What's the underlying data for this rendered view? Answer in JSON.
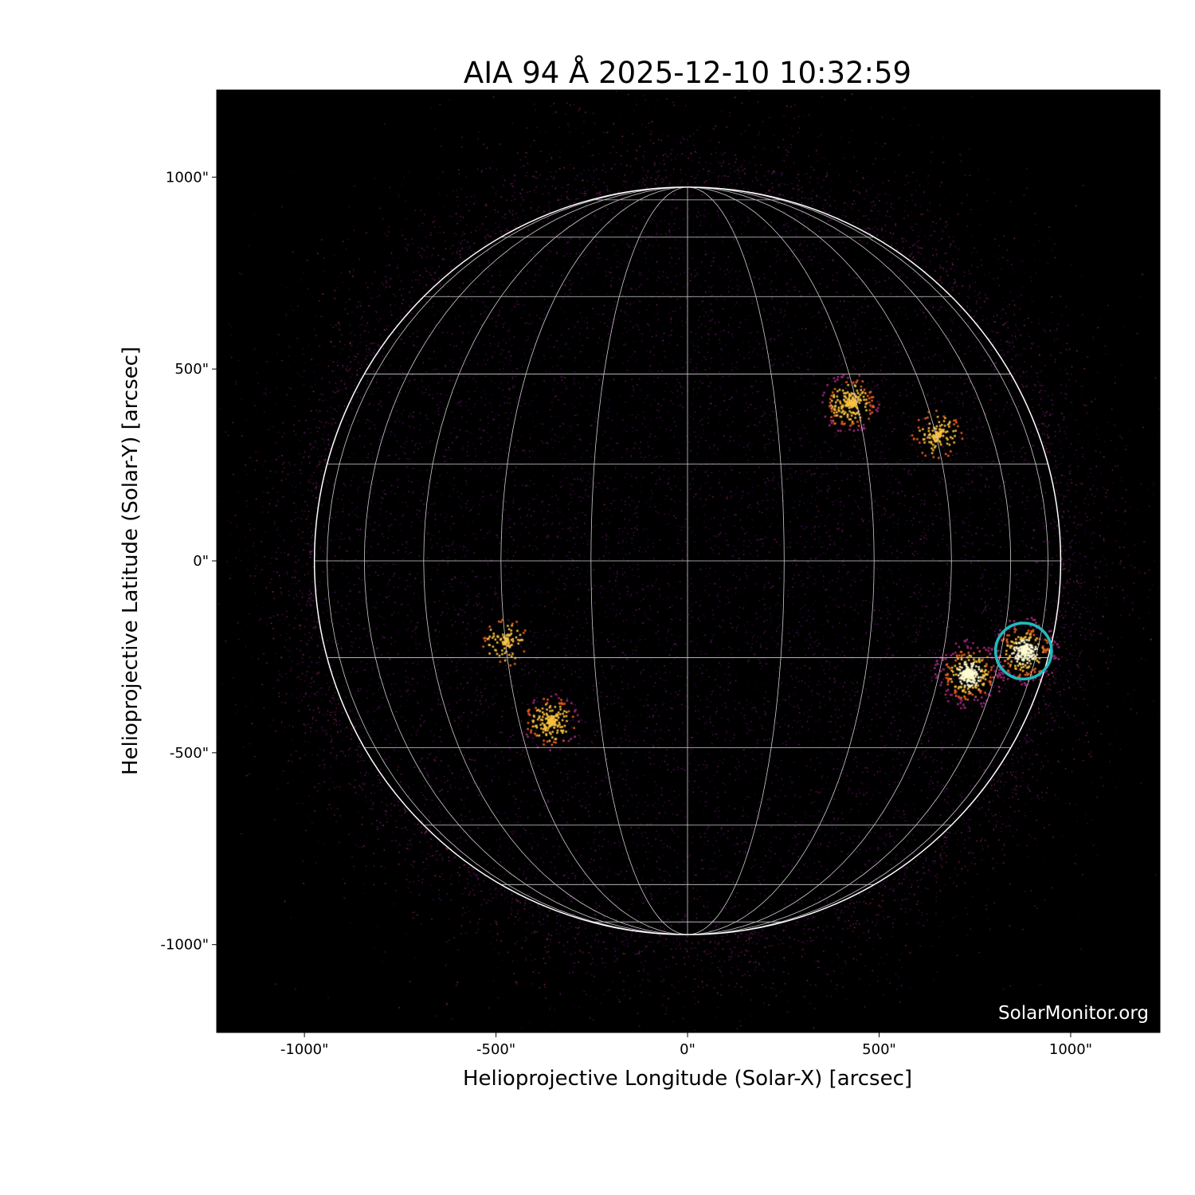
{
  "chart_data": {
    "type": "heatmap",
    "title": "AIA 94 Å 2025-12-10 10:32:59",
    "xlabel": "Helioprojective Longitude (Solar-X) [arcsec]",
    "ylabel": "Helioprojective Latitude (Solar-Y) [arcsec]",
    "xlim": [
      -1229,
      1233
    ],
    "ylim": [
      -1229,
      1227
    ],
    "x_ticks": [
      {
        "value": -1000,
        "label": "-1000\""
      },
      {
        "value": -500,
        "label": "-500\""
      },
      {
        "value": 0,
        "label": "0\""
      },
      {
        "value": 500,
        "label": "500\""
      },
      {
        "value": 1000,
        "label": "1000\""
      }
    ],
    "y_ticks": [
      {
        "value": 1000,
        "label": "1000\""
      },
      {
        "value": 500,
        "label": "500\""
      },
      {
        "value": 0,
        "label": "0\""
      },
      {
        "value": -500,
        "label": "-500\""
      },
      {
        "value": -1000,
        "label": "-1000\""
      }
    ],
    "solar_radius_arcsec": 974,
    "grid_spacing_deg": 15,
    "grid": true,
    "colormap": "inferno-like (black-purple-orange-yellow)",
    "bright_regions": [
      {
        "x": 421,
        "y": 413,
        "intensity": 0.7
      },
      {
        "x": 649,
        "y": 331,
        "intensity": 0.4
      },
      {
        "x": 732,
        "y": -293,
        "intensity": 1.0
      },
      {
        "x": 877,
        "y": -235,
        "intensity": 1.0
      },
      {
        "x": -360,
        "y": -418,
        "intensity": 0.6
      },
      {
        "x": -480,
        "y": -210,
        "intensity": 0.3
      }
    ],
    "marker": {
      "x": 877,
      "y": -235,
      "radius_arcsec": 73,
      "color": "#1fbcbc"
    },
    "watermark": "SolarMonitor.org"
  }
}
